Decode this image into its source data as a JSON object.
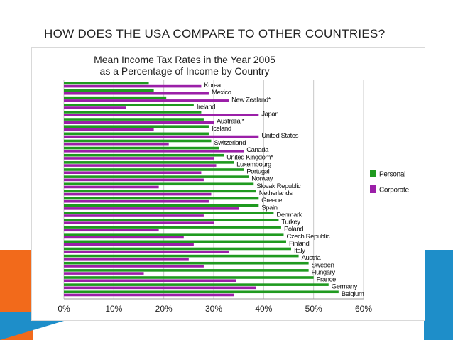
{
  "slide": {
    "title": "HOW DOES THE USA COMPARE TO OTHER COUNTRIES?"
  },
  "colors": {
    "personal": "#1f9a1f",
    "corporate": "#9b1fa8",
    "accent_orange": "#f26a1b",
    "accent_blue": "#1e8ec9"
  },
  "chart_data": {
    "type": "bar",
    "orientation": "horizontal",
    "title": "Mean Income Tax Rates in the Year 2005",
    "subtitle": "as a Percentage of Income by Country",
    "xlim": [
      0,
      60
    ],
    "x_ticks": [
      "0%",
      "10%",
      "20%",
      "30%",
      "40%",
      "50%",
      "60%"
    ],
    "grid": true,
    "legend_position": "right",
    "categories": [
      "Korea",
      "Mexico",
      "New Zealand*",
      "Ireland",
      "Japan",
      "Australia *",
      "Iceland",
      "United States",
      "Switzerland",
      "Canada",
      "United Kingdom*",
      "Luxembourg",
      "Portugal",
      "Norway",
      "Slovak Republic",
      "Netherlands",
      "Greece",
      "Spain",
      "Denmark",
      "Turkey",
      "Poland",
      "Czech Republic",
      "Finland",
      "Italy",
      "Austria",
      "Sweden",
      "Hungary",
      "France",
      "Germany",
      "Belgium"
    ],
    "series": [
      {
        "name": "Personal",
        "values": [
          17,
          18,
          20.5,
          26,
          27.5,
          28,
          29,
          29,
          29.5,
          31,
          32,
          34,
          36,
          37,
          38,
          38.5,
          39,
          39,
          42,
          43,
          43.5,
          44,
          44.5,
          45.5,
          47,
          49,
          49,
          50,
          53,
          55
        ]
      },
      {
        "name": "Corporate",
        "values": [
          27.5,
          29,
          33,
          12.5,
          39,
          30,
          18,
          39,
          21,
          36,
          30,
          30.5,
          27.5,
          28,
          19,
          29.5,
          29,
          35,
          28,
          30,
          19,
          24,
          26,
          33,
          25,
          28,
          16,
          34.5,
          38.5,
          34
        ]
      }
    ]
  }
}
